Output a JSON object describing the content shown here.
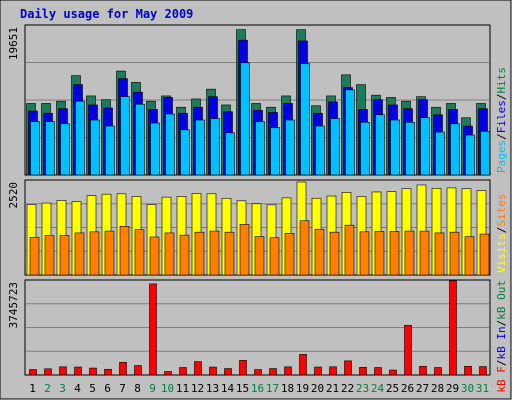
{
  "title": "Daily usage for May 2009",
  "colors": {
    "background": "#c0c0c0",
    "border": "#000000",
    "title": "#0000cc",
    "hits": "#008040",
    "files": "#0000ff",
    "pages": "#00c0ff",
    "visits": "#ffff00",
    "sites": "#ff8000",
    "kbin": "#0000ff",
    "kbout": "#008040",
    "kbf": "#ff0000",
    "weekday_label": "#000000",
    "weekend_label": "#008040"
  },
  "chart_data": [
    {
      "type": "bar",
      "panel": "hits-files-pages",
      "max_label": "19651",
      "ymax": 19651,
      "days": [
        "1",
        "2",
        "3",
        "4",
        "5",
        "6",
        "7",
        "8",
        "9",
        "10",
        "11",
        "12",
        "13",
        "14",
        "15",
        "16",
        "17",
        "18",
        "19",
        "20",
        "21",
        "22",
        "23",
        "24",
        "25",
        "26",
        "27",
        "28",
        "29",
        "30",
        "31"
      ],
      "weekend_days": [
        "2",
        "3",
        "9",
        "10",
        "16",
        "17",
        "23",
        "24",
        "30",
        "31"
      ],
      "legend": [
        "Pages",
        "/",
        "Files",
        "/",
        "Hits"
      ],
      "series": [
        {
          "name": "Hits",
          "values": [
            9500,
            9500,
            9800,
            13200,
            10500,
            10000,
            13800,
            12300,
            9800,
            10500,
            9000,
            10100,
            11400,
            9300,
            19300,
            9500,
            9000,
            10500,
            19300,
            9200,
            10500,
            13300,
            12000,
            10600,
            10300,
            9800,
            10400,
            9000,
            9500,
            7600,
            9500
          ]
        },
        {
          "name": "Files",
          "values": [
            8500,
            8200,
            8800,
            12000,
            9300,
            8900,
            12800,
            11000,
            8700,
            10300,
            8200,
            9000,
            10400,
            8400,
            17900,
            8600,
            8300,
            9500,
            17800,
            8200,
            9700,
            11600,
            8700,
            10000,
            9300,
            8800,
            10000,
            8000,
            8700,
            6500,
            8800
          ]
        },
        {
          "name": "Pages",
          "values": [
            7100,
            7100,
            6800,
            9800,
            7300,
            6500,
            10400,
            9400,
            6900,
            8100,
            6000,
            7300,
            7500,
            5600,
            14900,
            7100,
            6300,
            7300,
            14800,
            6500,
            7500,
            11300,
            7000,
            8000,
            7300,
            7000,
            7600,
            5700,
            6800,
            5300,
            5800
          ]
        }
      ]
    },
    {
      "type": "bar",
      "panel": "visits-sites",
      "max_label": "2520",
      "ymax": 2520,
      "days": [
        "1",
        "2",
        "3",
        "4",
        "5",
        "6",
        "7",
        "8",
        "9",
        "10",
        "11",
        "12",
        "13",
        "14",
        "15",
        "16",
        "17",
        "18",
        "19",
        "20",
        "21",
        "22",
        "23",
        "24",
        "25",
        "26",
        "27",
        "28",
        "29",
        "30",
        "31"
      ],
      "legend": [
        "Visits",
        "/",
        "Sites"
      ],
      "series": [
        {
          "name": "Visits",
          "values": [
            1910,
            1950,
            2020,
            1990,
            2150,
            2190,
            2200,
            2130,
            1910,
            2110,
            2130,
            2210,
            2200,
            2080,
            2010,
            1930,
            1900,
            2090,
            2520,
            2080,
            2140,
            2240,
            2130,
            2250,
            2260,
            2340,
            2440,
            2350,
            2360,
            2340,
            2290
          ]
        },
        {
          "name": "Sites",
          "values": [
            1020,
            1070,
            1070,
            1140,
            1170,
            1190,
            1320,
            1230,
            1030,
            1140,
            1080,
            1160,
            1190,
            1160,
            1370,
            1040,
            1010,
            1130,
            1470,
            1240,
            1160,
            1350,
            1170,
            1180,
            1180,
            1190,
            1190,
            1140,
            1160,
            1040,
            1110
          ]
        }
      ]
    },
    {
      "type": "bar",
      "panel": "kbytes",
      "max_label": "3745723",
      "ymax": 3745723,
      "days": [
        "1",
        "2",
        "3",
        "4",
        "5",
        "6",
        "7",
        "8",
        "9",
        "10",
        "11",
        "12",
        "13",
        "14",
        "15",
        "16",
        "17",
        "18",
        "19",
        "20",
        "21",
        "22",
        "23",
        "24",
        "25",
        "26",
        "27",
        "28",
        "29",
        "30",
        "31"
      ],
      "legend": [
        "kB F",
        "/",
        "kB In",
        "/",
        "kB Out"
      ],
      "series": [
        {
          "name": "kB F",
          "values": [
            220000,
            250000,
            330000,
            320000,
            280000,
            230000,
            510000,
            380000,
            3670000,
            140000,
            300000,
            540000,
            320000,
            260000,
            590000,
            220000,
            260000,
            330000,
            830000,
            320000,
            330000,
            570000,
            310000,
            300000,
            200000,
            2000000,
            350000,
            300000,
            3790000,
            350000,
            340000
          ]
        }
      ]
    }
  ]
}
